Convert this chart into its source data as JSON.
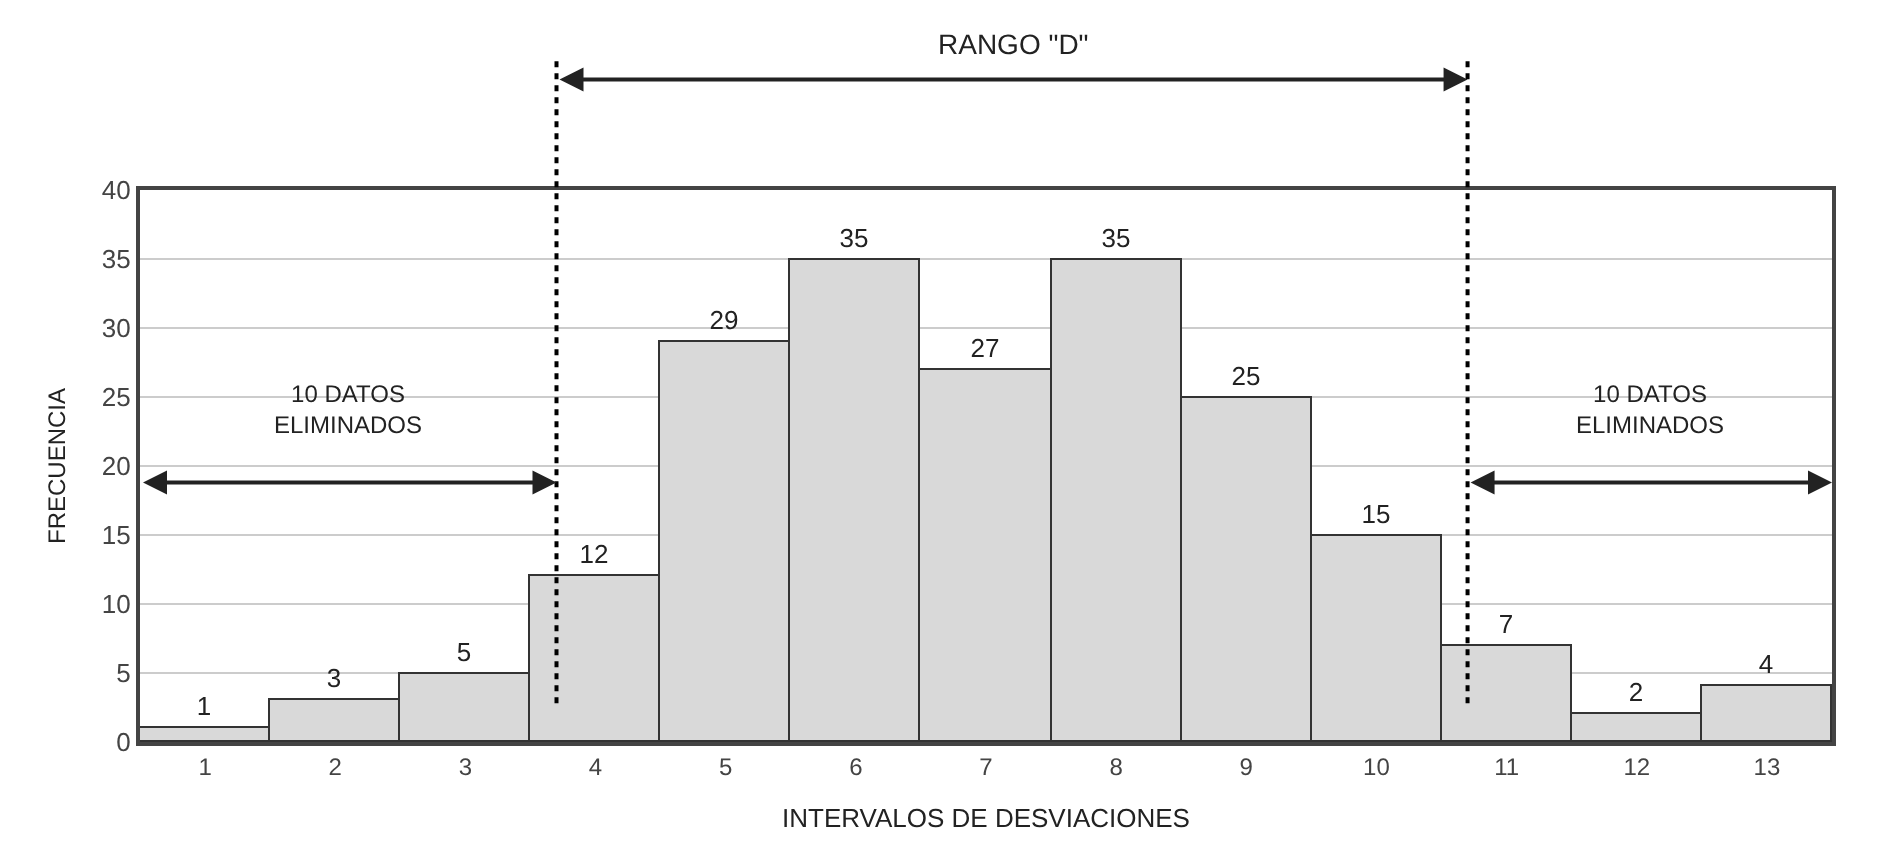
{
  "chart_data": {
    "type": "bar",
    "categories": [
      "1",
      "2",
      "3",
      "4",
      "5",
      "6",
      "7",
      "8",
      "9",
      "10",
      "11",
      "12",
      "13"
    ],
    "values": [
      1,
      3,
      5,
      12,
      29,
      35,
      27,
      35,
      25,
      15,
      7,
      2,
      4
    ],
    "color": "#d9d9d9",
    "xlabel": "INTERVALOS DE DESVIACIONES",
    "ylabel": "FRECUENCIA",
    "ylim": [
      0,
      40
    ],
    "yticks": [
      0,
      5,
      10,
      15,
      20,
      25,
      30,
      35,
      40
    ],
    "grid": "y",
    "data_labels": true,
    "ref_lines": [
      {
        "axis": "x",
        "value": "4",
        "line_style": "dotted",
        "color": "#000000"
      },
      {
        "axis": "x",
        "value": "11",
        "line_style": "dotted",
        "color": "#000000"
      }
    ],
    "annotations": [
      "RANGO \"D\"",
      "10 DATOS\nELIMINADOS",
      "10 DATOS\nELIMINADOS"
    ]
  }
}
